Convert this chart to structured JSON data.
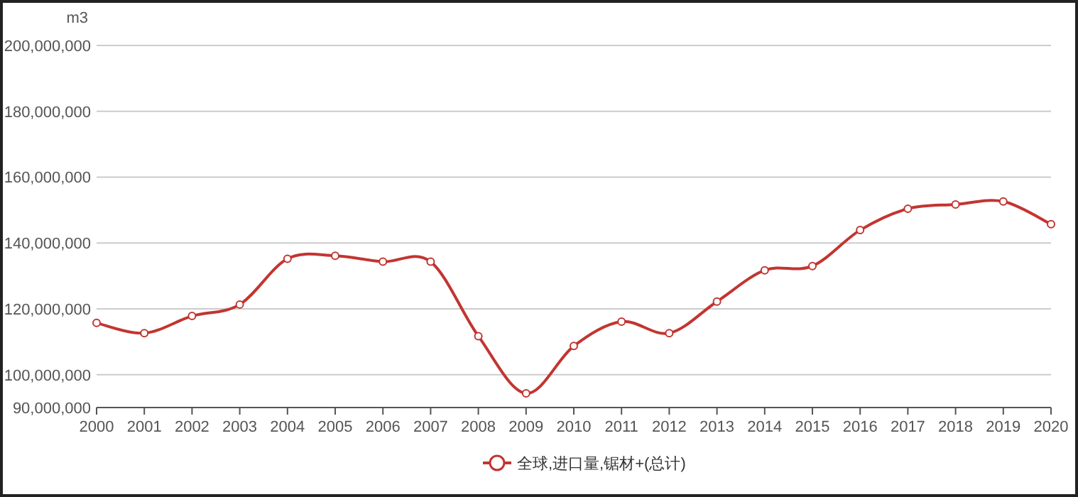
{
  "chart_data": {
    "type": "line",
    "ylabel": "m3",
    "categories": [
      "2000",
      "2001",
      "2002",
      "2003",
      "2004",
      "2005",
      "2006",
      "2007",
      "2008",
      "2009",
      "2010",
      "2011",
      "2012",
      "2013",
      "2014",
      "2015",
      "2016",
      "2017",
      "2018",
      "2019",
      "2020"
    ],
    "series": [
      {
        "name": "全球,进口量,锯材+(总计)",
        "color": "#c23531",
        "values": [
          115700000,
          112600000,
          117800000,
          121300000,
          135200000,
          136100000,
          134300000,
          134300000,
          111700000,
          94300000,
          108700000,
          116100000,
          112600000,
          122200000,
          131700000,
          133000000,
          143900000,
          150400000,
          151700000,
          152600000,
          145700000
        ]
      }
    ],
    "ylim": [
      90000000,
      200000000
    ],
    "yticks": [
      {
        "value": 90000000,
        "label": "90,000,000"
      },
      {
        "value": 100000000,
        "label": "100,000,000"
      },
      {
        "value": 120000000,
        "label": "120,000,000"
      },
      {
        "value": 140000000,
        "label": "140,000,000"
      },
      {
        "value": 160000000,
        "label": "160,000,000"
      },
      {
        "value": 180000000,
        "label": "180,000,000"
      },
      {
        "value": 200000000,
        "label": "200,000,000"
      }
    ],
    "grid": "y",
    "legend": "bottom",
    "marker": "circle",
    "line_style": "solid"
  }
}
